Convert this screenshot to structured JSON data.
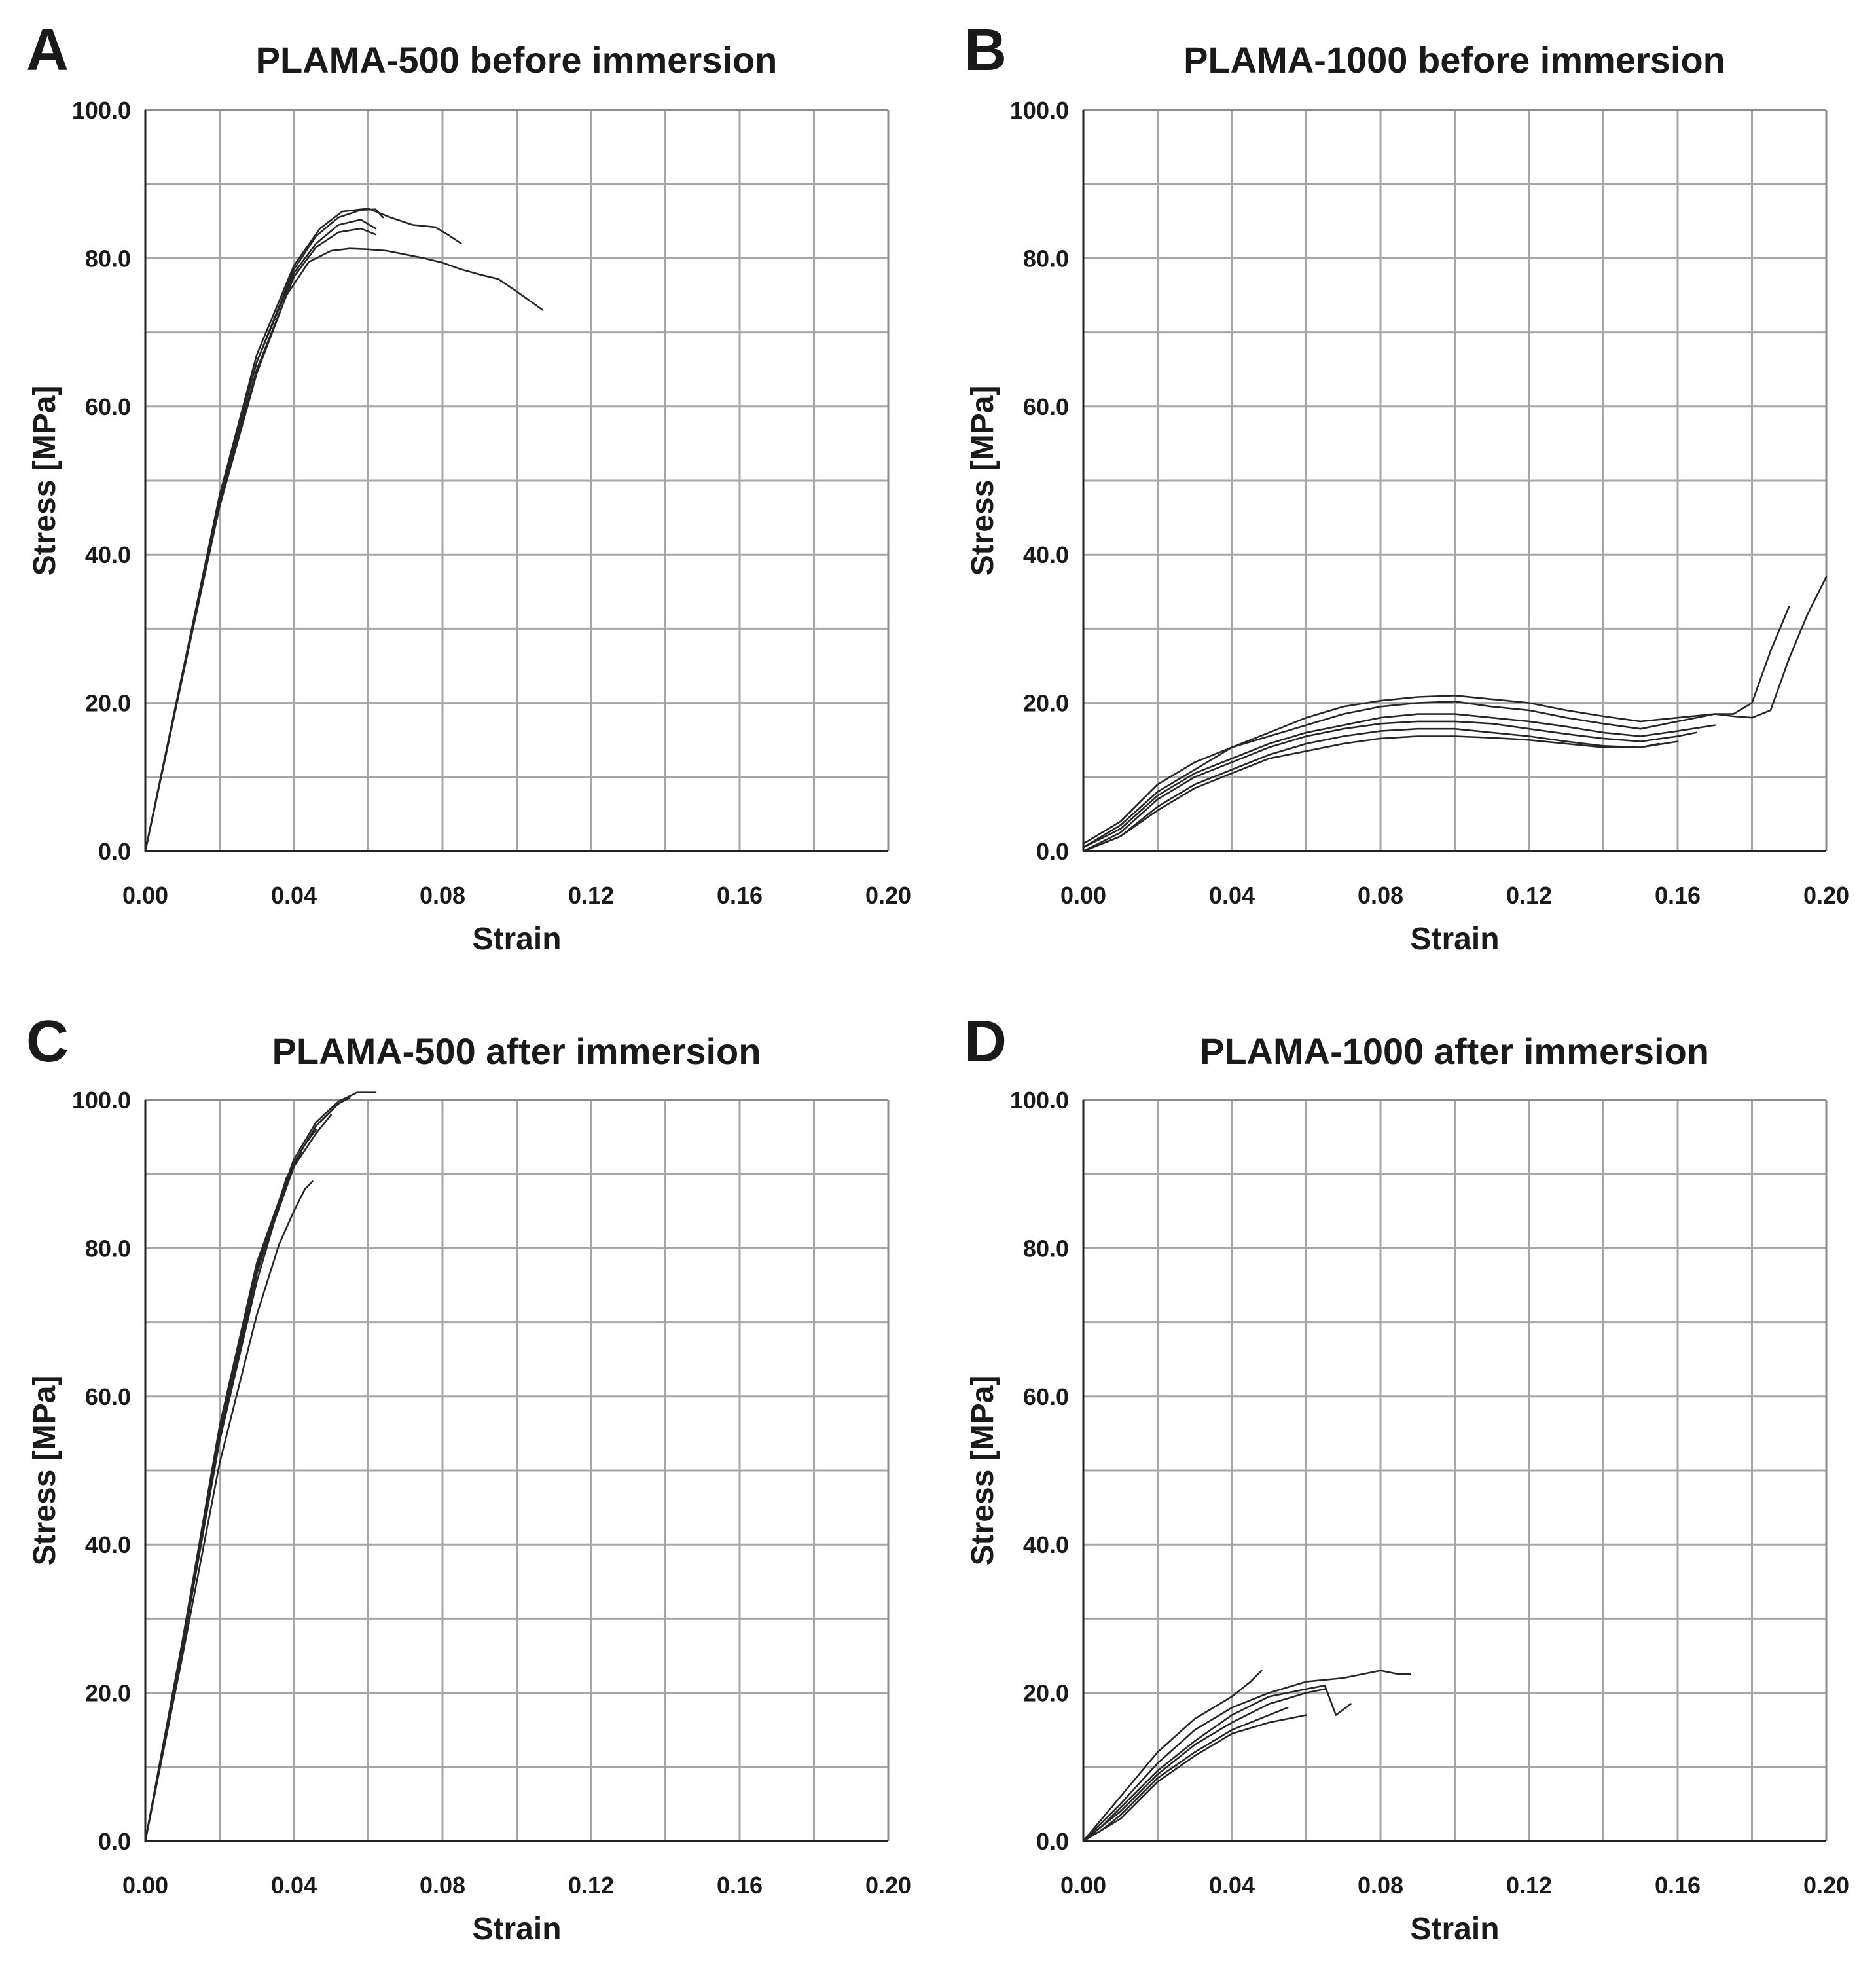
{
  "chart_data": [
    {
      "panel": "A",
      "title": "PLAMA-500 before immersion",
      "type": "line",
      "xlabel": "Strain",
      "ylabel": "Stress [MPa]",
      "xlim": [
        0,
        0.2
      ],
      "ylim": [
        0,
        100
      ],
      "xticks": [
        "0.00",
        "0.04",
        "0.08",
        "0.12",
        "0.16",
        "0.20"
      ],
      "yticks": [
        "0.0",
        "20.0",
        "40.0",
        "60.0",
        "80.0",
        "100.0"
      ],
      "grid": true,
      "series": [
        {
          "x": [
            0,
            0.01,
            0.02,
            0.03,
            0.04,
            0.047,
            0.053,
            0.06,
            0.066,
            0.072,
            0.078,
            0.082,
            0.085
          ],
          "y": [
            0,
            24,
            48,
            67,
            79,
            84,
            86.3,
            86.7,
            85.5,
            84.5,
            84.2,
            83.0,
            82.0
          ]
        },
        {
          "x": [
            0,
            0.01,
            0.02,
            0.03,
            0.04,
            0.046,
            0.052,
            0.058,
            0.062,
            0.064
          ],
          "y": [
            0,
            24,
            48,
            66,
            78.5,
            83,
            85.5,
            86.5,
            86.6,
            85.5
          ]
        },
        {
          "x": [
            0,
            0.01,
            0.02,
            0.03,
            0.04,
            0.046,
            0.052,
            0.058,
            0.062
          ],
          "y": [
            0,
            24,
            47.5,
            66,
            78,
            82,
            84.5,
            85.2,
            84.0
          ]
        },
        {
          "x": [
            0,
            0.01,
            0.02,
            0.03,
            0.04,
            0.046,
            0.052,
            0.058,
            0.062
          ],
          "y": [
            0,
            23.5,
            47,
            65,
            77.5,
            81.5,
            83.5,
            84.0,
            83.2
          ]
        },
        {
          "x": [
            0,
            0.01,
            0.02,
            0.03,
            0.038,
            0.044,
            0.05,
            0.055,
            0.06,
            0.065,
            0.07,
            0.075,
            0.08,
            0.085,
            0.09,
            0.095,
            0.1,
            0.107
          ],
          "y": [
            0,
            23.5,
            46.5,
            64.5,
            75,
            79.5,
            81,
            81.3,
            81.2,
            81,
            80.5,
            80.0,
            79.4,
            78.5,
            77.8,
            77.2,
            75.5,
            73.0
          ]
        }
      ]
    },
    {
      "panel": "B",
      "title": "PLAMA-1000 before immersion",
      "type": "line",
      "xlabel": "Strain",
      "ylabel": "Stress [MPa]",
      "xlim": [
        0,
        0.2
      ],
      "ylim": [
        0,
        100
      ],
      "xticks": [
        "0.00",
        "0.04",
        "0.08",
        "0.12",
        "0.16",
        "0.20"
      ],
      "yticks": [
        "0.0",
        "20.0",
        "40.0",
        "60.0",
        "80.0",
        "100.0"
      ],
      "grid": true,
      "series": [
        {
          "x": [
            0,
            0.01,
            0.02,
            0.03,
            0.04,
            0.05,
            0.06,
            0.07,
            0.08,
            0.09,
            0.1,
            0.11,
            0.12,
            0.13,
            0.14,
            0.15,
            0.16,
            0.17,
            0.175,
            0.18,
            0.185,
            0.19,
            0.195,
            0.2
          ],
          "y": [
            0.5,
            3.5,
            8,
            11,
            14,
            16,
            18,
            19.5,
            20.3,
            20.8,
            21,
            20.5,
            20,
            19,
            18.2,
            17.5,
            18,
            18.5,
            18.2,
            18,
            19,
            26,
            32,
            37
          ]
        },
        {
          "x": [
            0,
            0.01,
            0.02,
            0.03,
            0.04,
            0.05,
            0.06,
            0.07,
            0.08,
            0.09,
            0.1,
            0.11,
            0.12,
            0.13,
            0.14,
            0.15,
            0.16,
            0.17,
            0.175,
            0.18,
            0.185,
            0.19
          ],
          "y": [
            1,
            4,
            9,
            12,
            14,
            15.5,
            17,
            18.5,
            19.5,
            20,
            20.2,
            19.5,
            19,
            18,
            17.2,
            16.5,
            17.5,
            18.5,
            18.5,
            20,
            27,
            33
          ]
        },
        {
          "x": [
            0,
            0.01,
            0.02,
            0.03,
            0.04,
            0.05,
            0.06,
            0.07,
            0.08,
            0.09,
            0.1,
            0.11,
            0.12,
            0.13,
            0.14,
            0.15,
            0.16,
            0.17
          ],
          "y": [
            0.5,
            3,
            7.5,
            10.5,
            12.5,
            14.5,
            16,
            17,
            18,
            18.5,
            18.5,
            18,
            17.5,
            16.8,
            16,
            15.5,
            16.2,
            17
          ]
        },
        {
          "x": [
            0,
            0.01,
            0.02,
            0.03,
            0.04,
            0.05,
            0.06,
            0.07,
            0.08,
            0.09,
            0.1,
            0.11,
            0.12,
            0.13,
            0.14,
            0.15,
            0.16,
            0.165
          ],
          "y": [
            0,
            2.5,
            7,
            10,
            12,
            14,
            15.5,
            16.5,
            17.2,
            17.5,
            17.5,
            17.2,
            16.5,
            15.8,
            15.2,
            14.8,
            15.5,
            16
          ]
        },
        {
          "x": [
            0,
            0.01,
            0.02,
            0.03,
            0.04,
            0.05,
            0.06,
            0.07,
            0.08,
            0.09,
            0.1,
            0.11,
            0.12,
            0.13,
            0.14,
            0.15,
            0.16
          ],
          "y": [
            0,
            2,
            6,
            9,
            11,
            13,
            14.5,
            15.5,
            16.2,
            16.5,
            16.5,
            16,
            15.5,
            14.8,
            14.2,
            14,
            14.8
          ]
        },
        {
          "x": [
            0,
            0.01,
            0.02,
            0.03,
            0.04,
            0.05,
            0.06,
            0.07,
            0.08,
            0.09,
            0.1,
            0.11,
            0.12,
            0.13,
            0.14,
            0.15,
            0.155
          ],
          "y": [
            0,
            2,
            5.5,
            8.5,
            10.5,
            12.5,
            13.5,
            14.5,
            15.2,
            15.5,
            15.5,
            15.3,
            15,
            14.5,
            14,
            14,
            14.5
          ]
        }
      ]
    },
    {
      "panel": "C",
      "title": "PLAMA-500 after immersion",
      "type": "line",
      "xlabel": "Strain",
      "ylabel": "Stress [MPa]",
      "xlim": [
        0,
        0.2
      ],
      "ylim": [
        0,
        100
      ],
      "xticks": [
        "0.00",
        "0.04",
        "0.08",
        "0.12",
        "0.16",
        "0.20"
      ],
      "yticks": [
        "0.0",
        "20.0",
        "40.0",
        "60.0",
        "80.0",
        "100.0"
      ],
      "grid": true,
      "series": [
        {
          "x": [
            0,
            0.01,
            0.02,
            0.03,
            0.04,
            0.046,
            0.052,
            0.057,
            0.062
          ],
          "y": [
            0,
            27,
            56,
            78,
            92,
            97,
            99.8,
            101,
            101
          ]
        },
        {
          "x": [
            0,
            0.01,
            0.02,
            0.03,
            0.04,
            0.046,
            0.052,
            0.055
          ],
          "y": [
            0,
            27,
            55.5,
            77.5,
            91.5,
            96.5,
            99.5,
            100.3
          ]
        },
        {
          "x": [
            0,
            0.01,
            0.02,
            0.03,
            0.04,
            0.046,
            0.05
          ],
          "y": [
            0,
            26.5,
            55,
            77,
            91,
            95.5,
            98
          ]
        },
        {
          "x": [
            0,
            0.01,
            0.02,
            0.03,
            0.038,
            0.043,
            0.046
          ],
          "y": [
            0,
            26.5,
            54.5,
            76.5,
            89.5,
            94,
            96
          ]
        },
        {
          "x": [
            0,
            0.01,
            0.02,
            0.03,
            0.037,
            0.04,
            0.042
          ],
          "y": [
            0,
            26,
            54,
            75.5,
            87.5,
            91,
            93
          ]
        },
        {
          "x": [
            0,
            0.01,
            0.02,
            0.03,
            0.036,
            0.04,
            0.043,
            0.045
          ],
          "y": [
            0,
            25,
            51,
            71,
            80.5,
            85,
            88,
            89
          ]
        }
      ]
    },
    {
      "panel": "D",
      "title": "PLAMA-1000 after immersion",
      "type": "line",
      "xlabel": "Strain",
      "ylabel": "Stress [MPa]",
      "xlim": [
        0,
        0.2
      ],
      "ylim": [
        0,
        100
      ],
      "xticks": [
        "0.00",
        "0.04",
        "0.08",
        "0.12",
        "0.16",
        "0.20"
      ],
      "yticks": [
        "0.0",
        "20.0",
        "40.0",
        "60.0",
        "80.0",
        "100.0"
      ],
      "grid": true,
      "series": [
        {
          "x": [
            0,
            0.005,
            0.01,
            0.02,
            0.03,
            0.04,
            0.05,
            0.06,
            0.07,
            0.08,
            0.085,
            0.088
          ],
          "y": [
            0,
            2.5,
            5,
            10.5,
            15,
            18,
            20,
            21.5,
            22,
            23,
            22.5,
            22.5
          ]
        },
        {
          "x": [
            0,
            0.005,
            0.01,
            0.02,
            0.03,
            0.04,
            0.045,
            0.048
          ],
          "y": [
            0,
            3,
            6,
            12,
            16.5,
            19.5,
            21.5,
            23
          ]
        },
        {
          "x": [
            0,
            0.005,
            0.01,
            0.02,
            0.03,
            0.04,
            0.05,
            0.06,
            0.065,
            0.068,
            0.072
          ],
          "y": [
            0,
            2,
            4.5,
            9.5,
            13.5,
            17,
            19.5,
            20.5,
            21,
            17,
            18.5
          ]
        },
        {
          "x": [
            0,
            0.005,
            0.01,
            0.02,
            0.03,
            0.04,
            0.05,
            0.06,
            0.065
          ],
          "y": [
            0,
            2,
            4,
            9,
            13,
            16,
            18.5,
            20,
            20.5
          ]
        },
        {
          "x": [
            0,
            0.005,
            0.01,
            0.02,
            0.03,
            0.04,
            0.05,
            0.055
          ],
          "y": [
            0,
            1.5,
            3.5,
            8.5,
            12,
            15,
            17,
            18
          ]
        },
        {
          "x": [
            0,
            0.005,
            0.01,
            0.02,
            0.03,
            0.04,
            0.05,
            0.06
          ],
          "y": [
            0,
            1.5,
            3,
            8,
            11.5,
            14.5,
            16,
            17
          ]
        }
      ]
    }
  ]
}
